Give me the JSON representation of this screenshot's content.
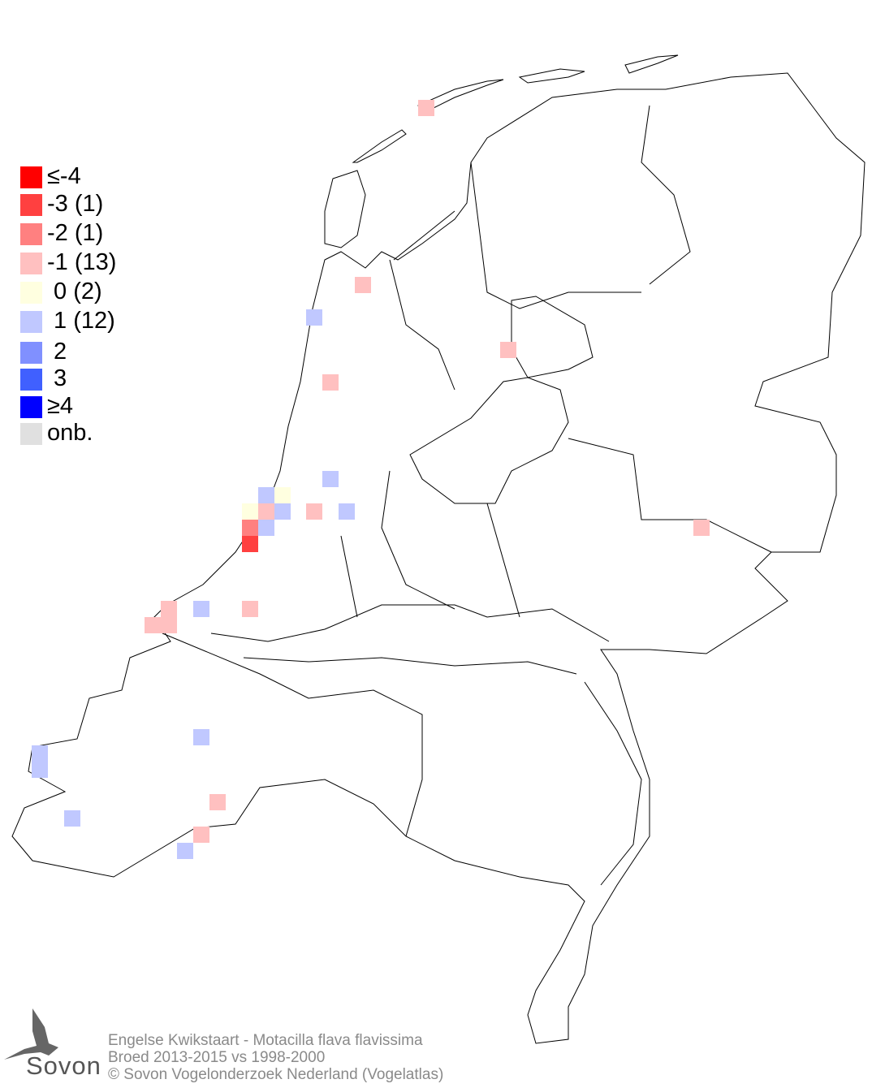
{
  "legend": {
    "items": [
      {
        "label": "≤-4",
        "color": "#ff0000"
      },
      {
        "label": "-3 (1)",
        "color": "#ff4040"
      },
      {
        "label": "-2 (1)",
        "color": "#ff8080"
      },
      {
        "label": "-1 (13)",
        "color": "#ffc0c0"
      },
      {
        "label": " 0 (2)",
        "color": "#ffffe0"
      },
      {
        "label": " 1 (12)",
        "color": "#c0c8ff"
      },
      {
        "label": " 2",
        "color": "#8090ff"
      },
      {
        "label": " 3",
        "color": "#4060ff"
      },
      {
        "label": "≥4",
        "color": "#0000ff"
      },
      {
        "label": "onb.",
        "color": "#e0e0e0"
      }
    ]
  },
  "footer": {
    "species": "Engelse Kwikstaart - Motacilla flava flavissima",
    "period": "Broed 2013-2015 vs 1998-2000",
    "copyright": "© Sovon Vogelonderzoek Nederland (Vogelatlas)"
  },
  "logo": {
    "text": "Sovon"
  }
}
